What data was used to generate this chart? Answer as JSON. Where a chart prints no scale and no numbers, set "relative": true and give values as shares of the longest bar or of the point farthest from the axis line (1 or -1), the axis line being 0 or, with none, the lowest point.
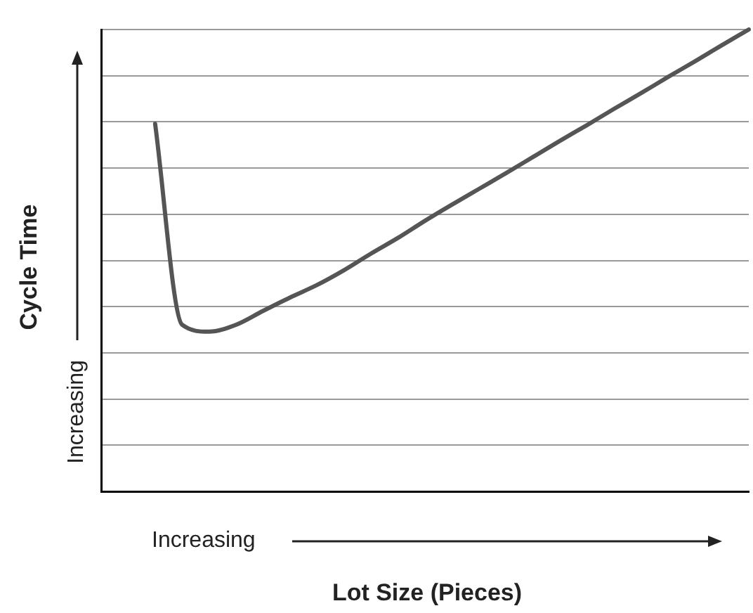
{
  "chart_data": {
    "type": "line",
    "relative": true,
    "xlabel": "Lot Size (Pieces)",
    "ylabel": "Cycle Time",
    "annotations": [
      "Increasing",
      "Increasing"
    ],
    "categories": [
      null,
      null,
      null,
      null,
      null,
      null,
      null,
      null,
      null,
      null,
      null,
      null,
      null,
      null,
      null,
      null,
      null,
      null,
      null,
      null,
      null,
      null,
      null,
      null,
      null
    ],
    "series": [
      {
        "color": "#555555",
        "values": [
          null,
          null,
          0.796,
          0.361,
          0.346,
          0.361,
          0.391,
          0.42,
          0.447,
          0.479,
          0.515,
          0.549,
          0.586,
          0.621,
          0.655,
          0.689,
          0.724,
          0.759,
          0.793,
          0.828,
          0.862,
          0.897,
          0.931,
          0.966,
          1
        ]
      }
    ],
    "grid": "y",
    "legend": false,
    "marker": "none",
    "line_style": "solid"
  }
}
